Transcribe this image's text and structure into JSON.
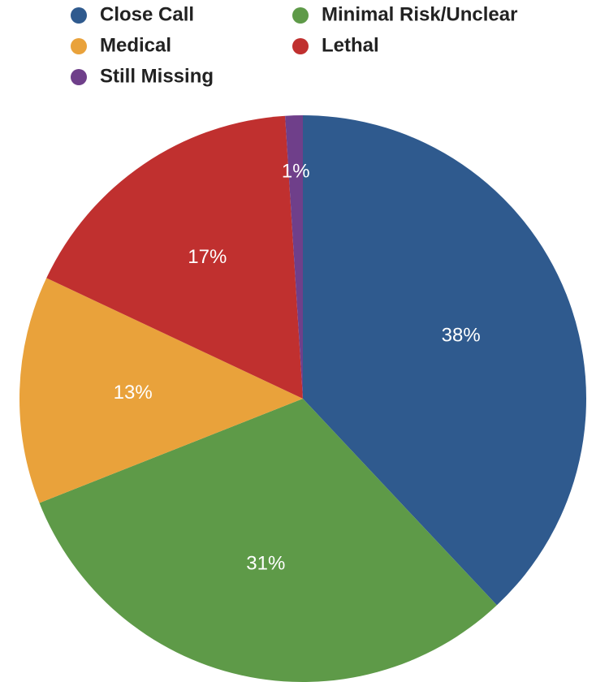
{
  "chart_data": {
    "type": "pie",
    "series": [
      {
        "name": "Close Call",
        "color": "#2f5a8e",
        "values": [
          38
        ],
        "value_labels": [
          "38%"
        ]
      },
      {
        "name": "Minimal Risk/Unclear",
        "color": "#5e9a48",
        "values": [
          31
        ],
        "value_labels": [
          "31%"
        ]
      },
      {
        "name": "Medical",
        "color": "#e9a23b",
        "values": [
          13
        ],
        "value_labels": [
          "13%"
        ]
      },
      {
        "name": "Lethal",
        "color": "#c0302f",
        "values": [
          17
        ],
        "value_labels": [
          "17%"
        ]
      },
      {
        "name": "Still Missing",
        "color": "#6f3f8a",
        "values": [
          1
        ],
        "value_labels": [
          "1%"
        ]
      }
    ],
    "legend": "top"
  }
}
